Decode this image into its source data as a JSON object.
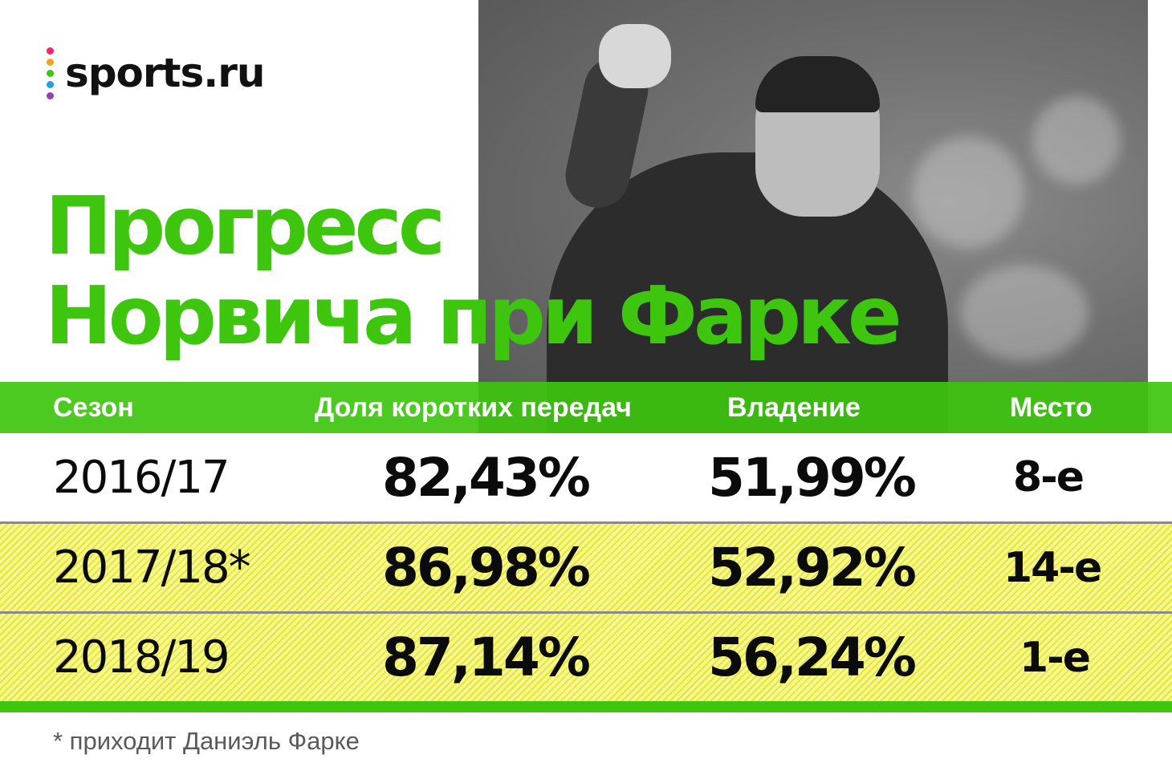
{
  "logo": {
    "text": "sports.ru",
    "dot_colors": [
      "#f0266f",
      "#f7a21b",
      "#3ec60f",
      "#1fa0e6",
      "#9b3fb8"
    ]
  },
  "title": {
    "line1": "Прогресс",
    "line2": "Норвича при Фарке"
  },
  "colors": {
    "accent": "#3ec60f",
    "stripe": "#eef05a"
  },
  "chart_data": {
    "type": "table",
    "columns": [
      "Сезон",
      "Доля коротких передач",
      "Владение",
      "Место"
    ],
    "rows": [
      {
        "season": "2016/17",
        "short_passes": "82,43%",
        "possession": "51,99%",
        "place": "8-е",
        "highlight": false
      },
      {
        "season": "2017/18*",
        "short_passes": "86,98%",
        "possession": "52,92%",
        "place": "14-е",
        "highlight": true
      },
      {
        "season": "2018/19",
        "short_passes": "87,14%",
        "possession": "56,24%",
        "place": "1-е",
        "highlight": true
      }
    ],
    "footnote": "* приходит Даниэль Фарке"
  }
}
